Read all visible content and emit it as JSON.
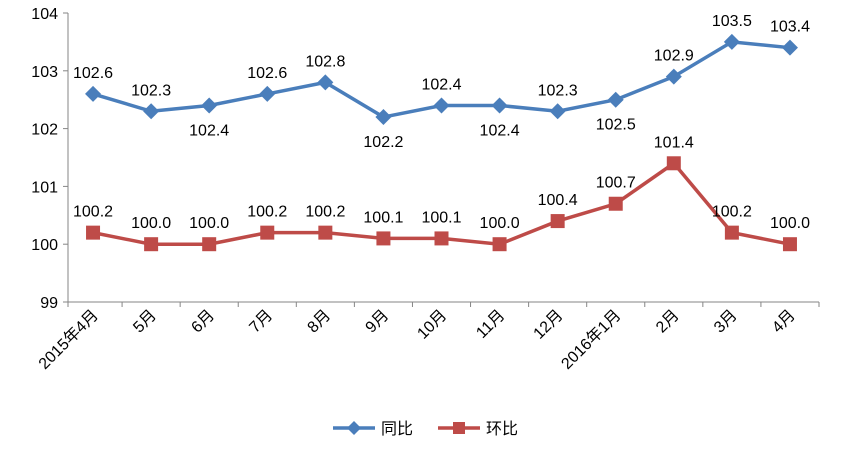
{
  "chart_data": {
    "type": "line",
    "categories": [
      "2015年4月",
      "5月",
      "6月",
      "7月",
      "8月",
      "9月",
      "10月",
      "11月",
      "12月",
      "2016年1月",
      "2月",
      "3月",
      "4月"
    ],
    "series": [
      {
        "name": "同比",
        "color": "#4a7ebb",
        "marker": "diamond",
        "values": [
          102.6,
          102.3,
          102.4,
          102.6,
          102.8,
          102.2,
          102.4,
          102.4,
          102.3,
          102.5,
          102.9,
          103.5,
          103.4
        ],
        "labels": [
          "102.6",
          "102.3",
          "102.4",
          "102.6",
          "102.8",
          "102.2",
          "102.4",
          "102.4",
          "102.3",
          "102.5",
          "102.9",
          "103.5",
          "103.4"
        ],
        "label_pos": [
          "above",
          "above",
          "below",
          "above",
          "above",
          "below",
          "above",
          "below",
          "above",
          "below",
          "above",
          "above",
          "above"
        ]
      },
      {
        "name": "环比",
        "color": "#be4b48",
        "marker": "square",
        "values": [
          100.2,
          100.0,
          100.0,
          100.2,
          100.2,
          100.1,
          100.1,
          100.0,
          100.4,
          100.7,
          101.4,
          100.2,
          100.0
        ],
        "labels": [
          "100.2",
          "100.0",
          "100.0",
          "100.2",
          "100.2",
          "100.1",
          "100.1",
          "100.0",
          "100.4",
          "100.7",
          "101.4",
          "100.2",
          "100.0"
        ],
        "label_pos": [
          "above",
          "above",
          "above",
          "above",
          "above",
          "above",
          "above",
          "above",
          "above",
          "above",
          "above",
          "above",
          "above"
        ]
      }
    ],
    "yticks": [
      "99",
      "100",
      "101",
      "102",
      "103",
      "104"
    ],
    "ylim": [
      99,
      104
    ],
    "grid": false,
    "legend": "bottom"
  }
}
